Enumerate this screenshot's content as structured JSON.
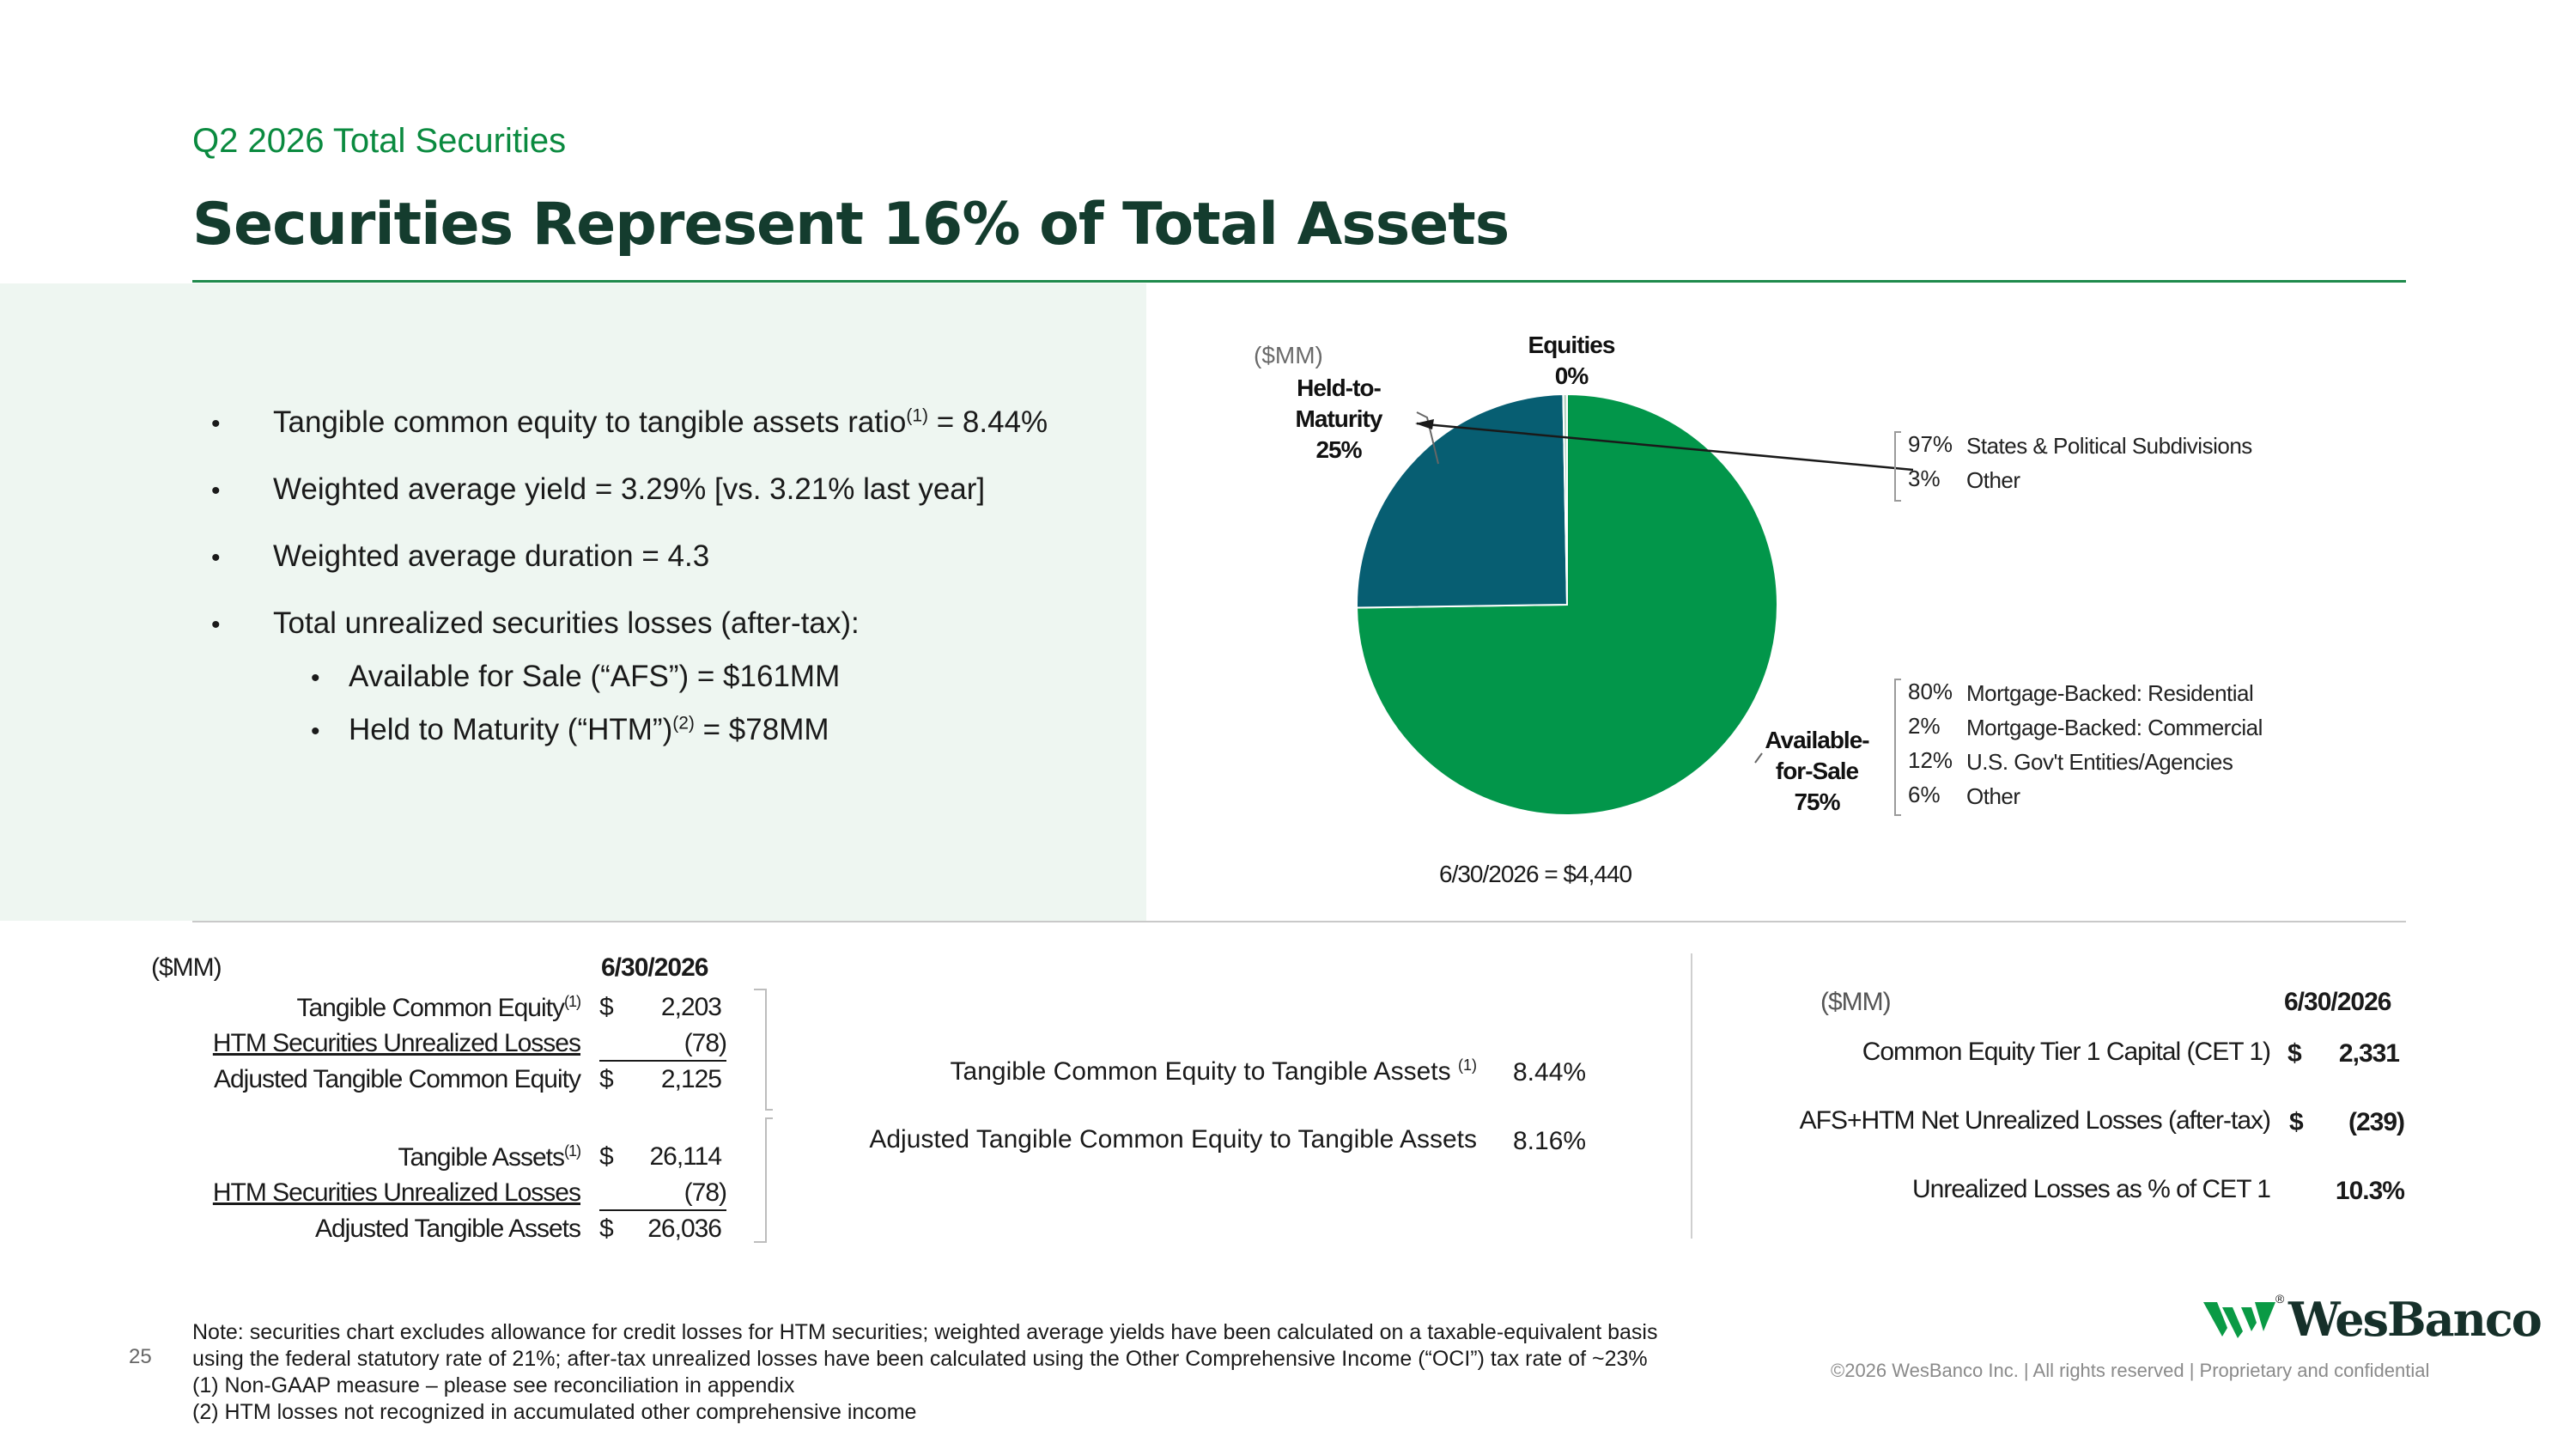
{
  "header": {
    "subtitle": "Q2 2026 Total Securities",
    "title": "Securities Represent 16% of Total Assets"
  },
  "bullets": [
    {
      "text": "Tangible common equity to tangible assets ratio",
      "sup": "(1)",
      "tail": " = 8.44%"
    },
    {
      "text": "Weighted average yield = 3.29% [vs. 3.21% last year]"
    },
    {
      "text": "Weighted average duration = 4.3"
    },
    {
      "text": "Total unrealized securities losses (after-tax):"
    }
  ],
  "sub_bullets": [
    {
      "text": "Available for Sale (“AFS”) = $161MM"
    },
    {
      "text": "Held to Maturity (“HTM”)",
      "sup": "(2)",
      "tail": " = $78MM"
    }
  ],
  "chart_data": {
    "type": "pie",
    "unit_label": "($MM)",
    "total_label": "6/30/2026  =  $4,440",
    "slices": [
      {
        "name": "Available-for-Sale",
        "label_lines": [
          "Available-",
          "for-Sale",
          "75%"
        ],
        "value": 75,
        "color": "#02964a"
      },
      {
        "name": "Held-to-Maturity",
        "label_lines": [
          "Held-to-",
          "Maturity",
          "25%"
        ],
        "value": 25,
        "color": "#075e72"
      },
      {
        "name": "Equities",
        "label_lines": [
          "Equities",
          "0%"
        ],
        "value": 0.3,
        "color": "#b9d5c4"
      }
    ],
    "htm_breakdown": [
      {
        "pct": "97%",
        "label": "States & Political Subdivisions"
      },
      {
        "pct": "3%",
        "label": "Other"
      }
    ],
    "afs_breakdown": [
      {
        "pct": "80%",
        "label": "Mortgage-Backed: Residential"
      },
      {
        "pct": "2%",
        "label": "Mortgage-Backed: Commercial"
      },
      {
        "pct": "12%",
        "label": "U.S. Gov't Entities/Agencies"
      },
      {
        "pct": "6%",
        "label": "Other"
      }
    ]
  },
  "left_table": {
    "unit": "($MM)",
    "date": "6/30/2026",
    "rows": [
      {
        "label": "Tangible Common Equity",
        "sup": "(1)",
        "dollar": "$",
        "value": "2,203"
      },
      {
        "label": "HTM Securities Unrealized Losses",
        "dollar": "",
        "value": "(78)"
      },
      {
        "label": "Adjusted Tangible Common Equity",
        "dollar": "$",
        "value": "2,125"
      },
      {
        "label": "Tangible Assets",
        "sup": "(1)",
        "dollar": "$",
        "value": "26,114"
      },
      {
        "label": "HTM Securities Unrealized Losses",
        "dollar": "",
        "value": "(78)"
      },
      {
        "label": "Adjusted Tangible Assets",
        "dollar": "$",
        "value": "26,036"
      }
    ]
  },
  "mid_table": {
    "rows": [
      {
        "label": "Tangible Common Equity to Tangible Assets",
        "sup": "(1)",
        "value": "8.44%"
      },
      {
        "label": "Adjusted Tangible Common Equity to Tangible Assets",
        "value": "8.16%"
      }
    ]
  },
  "right_table": {
    "unit": "($MM)",
    "date": "6/30/2026",
    "rows": [
      {
        "label": "Common Equity Tier 1 Capital (CET 1)",
        "dollar": "$",
        "value": "2,331"
      },
      {
        "label": "AFS+HTM Net Unrealized Losses (after-tax)",
        "dollar": "$",
        "value": "(239)"
      },
      {
        "label": "Unrealized Losses as % of CET 1",
        "dollar": "",
        "value": "10.3%"
      }
    ]
  },
  "footer": {
    "notes": [
      "Note: securities chart excludes allowance for credit losses for HTM securities; weighted average yields have been calculated on a taxable-equivalent basis",
      "using the federal statutory rate of 21%; after-tax unrealized losses have been calculated using the Other Comprehensive Income (“OCI”) tax rate of ~23%",
      "(1) Non-GAAP measure – please see reconciliation in appendix",
      "(2) HTM losses not recognized in accumulated other comprehensive income"
    ],
    "page_number": "25",
    "copyright": "©2026 WesBanco Inc.  |  All rights reserved  |  Proprietary and confidential",
    "logo": "WesBanco",
    "logo_mark": "®"
  },
  "colors": {
    "accent": "#0a8a3f",
    "title": "#143c2e",
    "panel": "#eef6f1",
    "afs": "#02964a",
    "htm": "#075e72"
  }
}
